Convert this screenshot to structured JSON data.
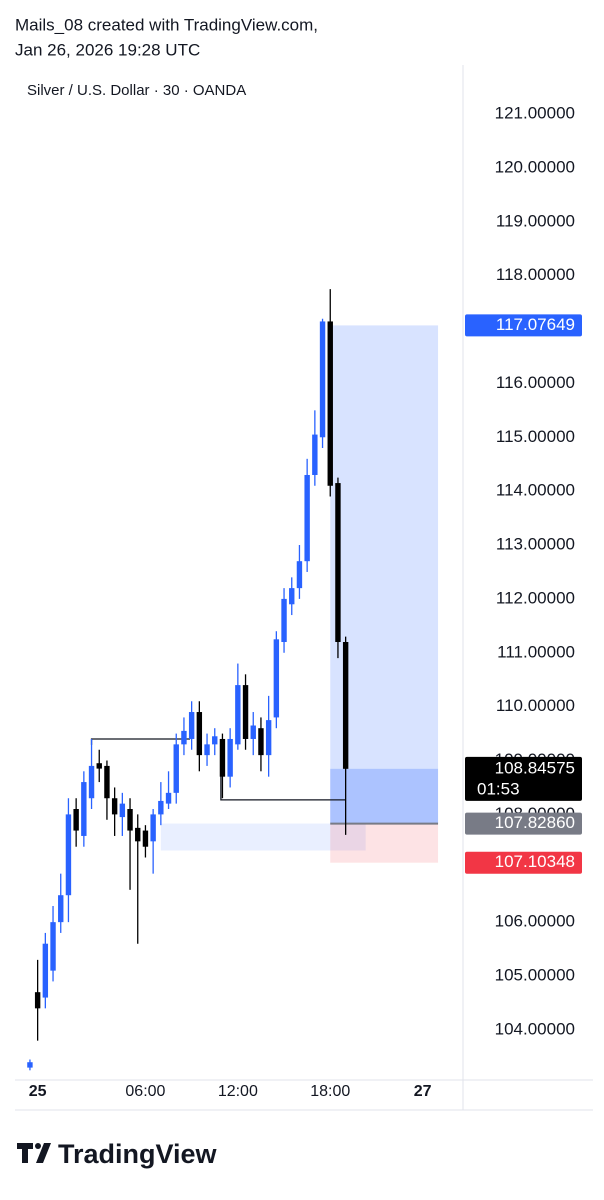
{
  "header": {
    "line1": "Mails_08 created with TradingView.com,",
    "line2": "Jan 26, 2026 19:28 UTC"
  },
  "chart_data": {
    "type": "candlestick",
    "title": "Silver / U.S. Dollar · 30 · OANDA",
    "up_color": "#2962ff",
    "down_color": "#000000",
    "x": [
      -1.5,
      -1,
      -0.5,
      0,
      0.5,
      1,
      1.5,
      2,
      2.5,
      3,
      3.5,
      4,
      4.5,
      5,
      5.5,
      6,
      6.5,
      7,
      7.5,
      8,
      8.5,
      9,
      9.5,
      10,
      10.5,
      11,
      11.5,
      12,
      12.5,
      13,
      13.5,
      14,
      14.5,
      15,
      15.5,
      16,
      16.5,
      17,
      17.5,
      18,
      18.5,
      19
    ],
    "open": [
      103.3,
      104.7,
      104.6,
      105.1,
      106.0,
      106.5,
      108.1,
      107.6,
      108.3,
      108.95,
      108.9,
      108.3,
      107.95,
      108.1,
      107.75,
      107.7,
      107.5,
      108.0,
      108.2,
      108.4,
      109.3,
      109.4,
      109.9,
      109.1,
      109.3,
      109.4,
      108.7,
      109.3,
      110.4,
      109.4,
      109.6,
      109.1,
      109.8,
      111.2,
      111.9,
      112.2,
      112.7,
      114.3,
      115.0,
      117.15,
      114.15,
      111.2
    ],
    "high": [
      103.45,
      105.3,
      105.8,
      106.3,
      106.9,
      108.3,
      108.3,
      108.8,
      109.4,
      109.2,
      109.0,
      108.5,
      108.4,
      108.3,
      108.0,
      107.8,
      108.1,
      108.6,
      108.8,
      109.5,
      109.8,
      110.1,
      110.1,
      109.5,
      109.6,
      109.5,
      109.6,
      110.8,
      110.6,
      109.9,
      109.8,
      110.2,
      111.4,
      112.2,
      112.4,
      113.0,
      114.6,
      115.5,
      117.2,
      117.75,
      114.25,
      111.3
    ],
    "low": [
      103.25,
      103.8,
      104.4,
      104.9,
      105.8,
      106.0,
      107.4,
      107.4,
      108.1,
      108.6,
      107.9,
      107.6,
      107.6,
      106.6,
      105.6,
      107.2,
      106.9,
      107.8,
      108.1,
      108.2,
      109.1,
      109.2,
      108.8,
      108.9,
      109.1,
      108.3,
      108.5,
      109.2,
      109.2,
      109.1,
      108.8,
      108.7,
      109.6,
      111.0,
      111.7,
      112.0,
      112.5,
      114.1,
      114.8,
      113.9,
      110.9,
      107.62
    ],
    "close": [
      103.4,
      104.4,
      105.6,
      106.0,
      106.5,
      108.0,
      107.7,
      108.6,
      108.9,
      108.85,
      108.3,
      108.0,
      108.2,
      107.7,
      107.5,
      107.4,
      108.0,
      108.25,
      108.4,
      109.3,
      109.55,
      109.9,
      109.1,
      109.3,
      109.45,
      108.7,
      109.4,
      110.4,
      109.4,
      109.65,
      109.1,
      109.75,
      111.25,
      112.0,
      112.2,
      112.7,
      114.3,
      115.05,
      117.15,
      114.1,
      111.2,
      108.84575
    ],
    "xlim": [
      -2.47,
      26.62
    ],
    "xticks": [
      {
        "value": -1,
        "label": "25"
      },
      {
        "value": 6,
        "label": "06:00"
      },
      {
        "value": 12,
        "label": "12:00"
      },
      {
        "value": 18,
        "label": "18:00"
      },
      {
        "value": 24,
        "label": "27"
      }
    ],
    "ylim": [
      103.07,
      121.91
    ],
    "yticks": [
      {
        "value": 104,
        "label": "104.00000"
      },
      {
        "value": 105,
        "label": "105.00000"
      },
      {
        "value": 106,
        "label": "106.00000"
      },
      {
        "value": 107,
        "label": "107.00000"
      },
      {
        "value": 108,
        "label": "108.00000"
      },
      {
        "value": 109,
        "label": "109.00000"
      },
      {
        "value": 110,
        "label": "110.00000"
      },
      {
        "value": 111,
        "label": "111.00000"
      },
      {
        "value": 112,
        "label": "112.00000"
      },
      {
        "value": 113,
        "label": "113.00000"
      },
      {
        "value": 114,
        "label": "114.00000"
      },
      {
        "value": 115,
        "label": "115.00000"
      },
      {
        "value": 116,
        "label": "116.00000"
      },
      {
        "value": 117,
        "label": "117.00000"
      },
      {
        "value": 118,
        "label": "118.00000"
      },
      {
        "value": 119,
        "label": "119.00000"
      },
      {
        "value": 120,
        "label": "120.00000"
      },
      {
        "value": 121,
        "label": "121.00000"
      }
    ],
    "position": {
      "x": [
        18,
        25
      ],
      "target": 117.07649,
      "entry": 107.8286,
      "stop": 107.10348,
      "target_label": "117.07649",
      "entry_label": "107.82860",
      "stop_label": "107.10348"
    },
    "current_price": {
      "value": 108.84575,
      "label": "108.84575",
      "countdown": "01:53"
    },
    "zone": {
      "x": [
        7,
        20.3
      ],
      "y": [
        107.33,
        107.83
      ]
    },
    "lines": [
      {
        "x": [
          2.5,
          2.5,
          8.9
        ],
        "y": [
          109.29,
          109.4,
          109.4
        ]
      },
      {
        "x": [
          10.9,
          10.9,
          19
        ],
        "y": [
          109.0,
          108.27,
          108.27
        ]
      }
    ]
  },
  "footer": {
    "brand": "TradingView"
  }
}
